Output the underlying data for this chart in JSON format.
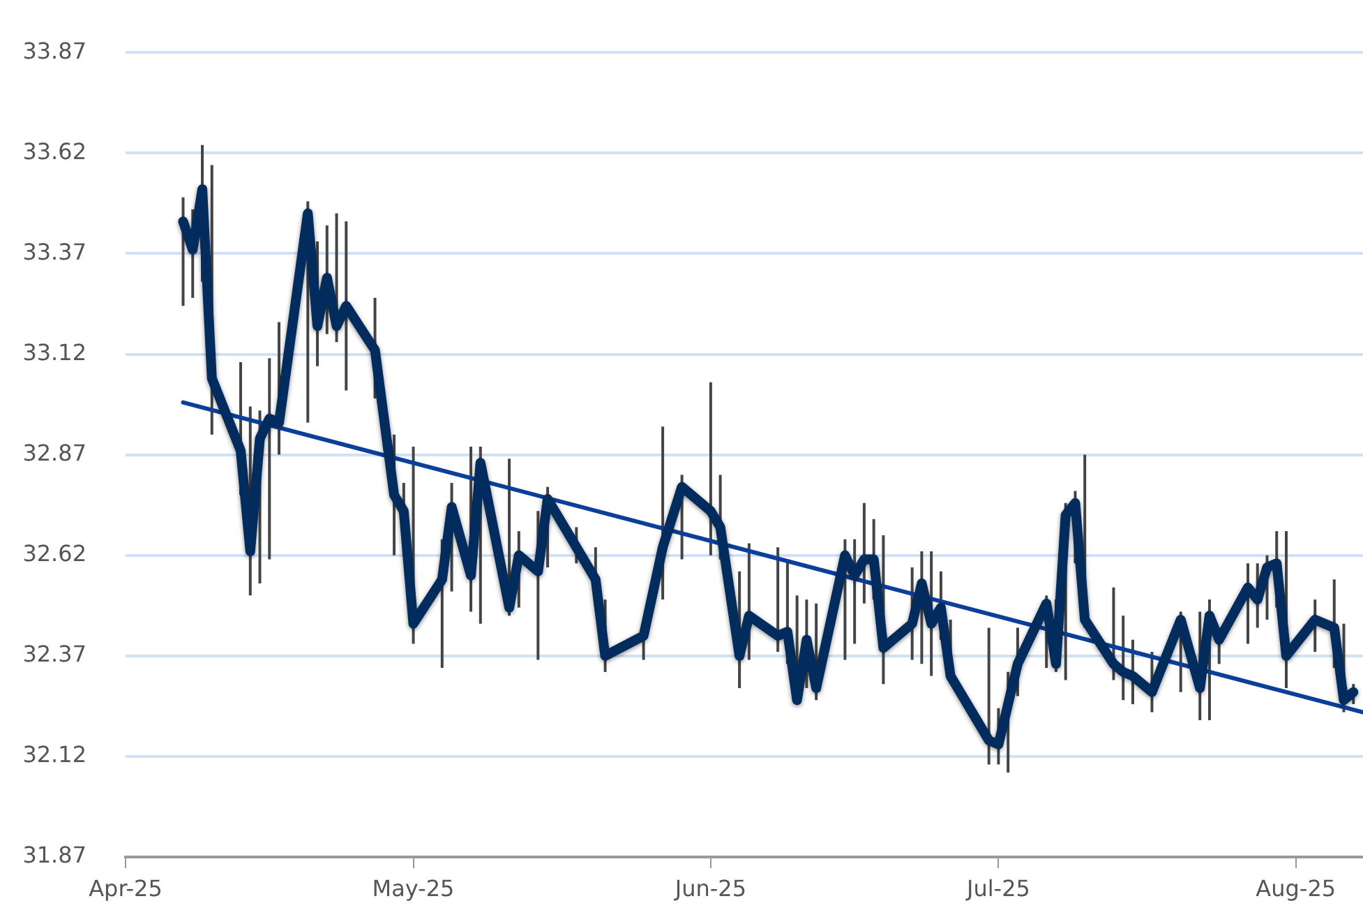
{
  "chart_data": {
    "type": "line",
    "grid": "y",
    "legend": false,
    "marker": "none",
    "line_style": "solid",
    "xlim": [
      "2025-04-01",
      "2025-08-08"
    ],
    "xticks": [
      {
        "value": "2025-04-01",
        "label": "Apr-25"
      },
      {
        "value": "2025-05-01",
        "label": "May-25"
      },
      {
        "value": "2025-06-01",
        "label": "Jun-25"
      },
      {
        "value": "2025-07-01",
        "label": "Jul-25"
      },
      {
        "value": "2025-08-01",
        "label": "Aug-25"
      }
    ],
    "ylim": [
      31.87,
      33.87
    ],
    "yticks": [
      31.87,
      32.12,
      32.37,
      32.62,
      32.87,
      33.12,
      33.37,
      33.62,
      33.87
    ],
    "series": [
      {
        "color": "#022b5e",
        "x": [
          "2025-04-07",
          "2025-04-08",
          "2025-04-09",
          "2025-04-10",
          "2025-04-13",
          "2025-04-14",
          "2025-04-15",
          "2025-04-16",
          "2025-04-17",
          "2025-04-20",
          "2025-04-21",
          "2025-04-22",
          "2025-04-23",
          "2025-04-24",
          "2025-04-27",
          "2025-04-29",
          "2025-04-30",
          "2025-05-01",
          "2025-05-04",
          "2025-05-05",
          "2025-05-07",
          "2025-05-08",
          "2025-05-11",
          "2025-05-12",
          "2025-05-14",
          "2025-05-15",
          "2025-05-18",
          "2025-05-20",
          "2025-05-21",
          "2025-05-25",
          "2025-05-27",
          "2025-05-29",
          "2025-06-01",
          "2025-06-02",
          "2025-06-04",
          "2025-06-05",
          "2025-06-08",
          "2025-06-09",
          "2025-06-10",
          "2025-06-11",
          "2025-06-12",
          "2025-06-15",
          "2025-06-16",
          "2025-06-17",
          "2025-06-18",
          "2025-06-19",
          "2025-06-22",
          "2025-06-23",
          "2025-06-24",
          "2025-06-25",
          "2025-06-26",
          "2025-06-30",
          "2025-07-01",
          "2025-07-02",
          "2025-07-03",
          "2025-07-06",
          "2025-07-07",
          "2025-07-08",
          "2025-07-09",
          "2025-07-10",
          "2025-07-13",
          "2025-07-14",
          "2025-07-15",
          "2025-07-17",
          "2025-07-20",
          "2025-07-22",
          "2025-07-23",
          "2025-07-24",
          "2025-07-27",
          "2025-07-28",
          "2025-07-29",
          "2025-07-30",
          "2025-07-31",
          "2025-08-03",
          "2025-08-05",
          "2025-08-06",
          "2025-08-07"
        ],
        "values": [
          33.45,
          33.38,
          33.53,
          33.06,
          32.88,
          32.63,
          32.91,
          32.96,
          32.95,
          33.47,
          33.19,
          33.31,
          33.19,
          33.24,
          33.13,
          32.77,
          32.73,
          32.45,
          32.56,
          32.74,
          32.57,
          32.85,
          32.49,
          32.62,
          32.58,
          32.76,
          32.64,
          32.56,
          32.37,
          32.42,
          32.64,
          32.79,
          32.73,
          32.69,
          32.37,
          32.47,
          32.42,
          32.43,
          32.26,
          32.41,
          32.29,
          32.62,
          32.57,
          32.61,
          32.61,
          32.39,
          32.45,
          32.55,
          32.45,
          32.49,
          32.32,
          32.16,
          32.15,
          32.25,
          32.35,
          32.5,
          32.35,
          32.72,
          32.75,
          32.46,
          32.35,
          32.33,
          32.32,
          32.28,
          32.46,
          32.29,
          32.47,
          32.41,
          32.54,
          32.51,
          32.59,
          32.6,
          32.37,
          32.46,
          32.44,
          32.26,
          32.28
        ],
        "errors": [
          [
            33.24,
            33.51
          ],
          [
            33.26,
            33.48
          ],
          [
            33.3,
            33.64
          ],
          [
            32.92,
            33.59
          ],
          [
            32.77,
            33.1
          ],
          [
            32.52,
            32.99
          ],
          [
            32.55,
            32.98
          ],
          [
            32.61,
            33.11
          ],
          [
            32.87,
            33.2
          ],
          [
            32.95,
            33.5
          ],
          [
            33.09,
            33.4
          ],
          [
            33.17,
            33.44
          ],
          [
            33.15,
            33.47
          ],
          [
            33.03,
            33.45
          ],
          [
            33.01,
            33.26
          ],
          [
            32.62,
            32.92
          ],
          [
            32.62,
            32.8
          ],
          [
            32.4,
            32.89
          ],
          [
            32.34,
            32.66
          ],
          [
            32.53,
            32.8
          ],
          [
            32.48,
            32.89
          ],
          [
            32.45,
            32.89
          ],
          [
            32.47,
            32.86
          ],
          [
            32.49,
            32.68
          ],
          [
            32.36,
            32.73
          ],
          [
            32.59,
            32.79
          ],
          [
            32.6,
            32.69
          ],
          [
            32.5,
            32.64
          ],
          [
            32.33,
            32.51
          ],
          [
            32.36,
            32.44
          ],
          [
            32.51,
            32.94
          ],
          [
            32.61,
            32.82
          ],
          [
            32.62,
            33.05
          ],
          [
            32.61,
            32.82
          ],
          [
            32.29,
            32.58
          ],
          [
            32.36,
            32.65
          ],
          [
            32.38,
            32.64
          ],
          [
            32.35,
            32.61
          ],
          [
            32.25,
            32.52
          ],
          [
            32.29,
            32.51
          ],
          [
            32.26,
            32.5
          ],
          [
            32.36,
            32.66
          ],
          [
            32.4,
            32.66
          ],
          [
            32.5,
            32.75
          ],
          [
            32.51,
            32.71
          ],
          [
            32.3,
            32.67
          ],
          [
            32.36,
            32.59
          ],
          [
            32.35,
            32.63
          ],
          [
            32.32,
            32.63
          ],
          [
            32.41,
            32.58
          ],
          [
            32.3,
            32.46
          ],
          [
            32.1,
            32.44
          ],
          [
            32.1,
            32.24
          ],
          [
            32.08,
            32.33
          ],
          [
            32.27,
            32.44
          ],
          [
            32.34,
            32.52
          ],
          [
            32.33,
            32.51
          ],
          [
            32.31,
            32.75
          ],
          [
            32.6,
            32.78
          ],
          [
            32.44,
            32.87
          ],
          [
            32.31,
            32.54
          ],
          [
            32.26,
            32.47
          ],
          [
            32.25,
            32.41
          ],
          [
            32.23,
            32.38
          ],
          [
            32.28,
            32.48
          ],
          [
            32.21,
            32.48
          ],
          [
            32.21,
            32.51
          ],
          [
            32.35,
            32.44
          ],
          [
            32.4,
            32.6
          ],
          [
            32.44,
            32.6
          ],
          [
            32.46,
            32.62
          ],
          [
            32.49,
            32.68
          ],
          [
            32.29,
            32.68
          ],
          [
            32.38,
            32.51
          ],
          [
            32.34,
            32.56
          ],
          [
            32.23,
            32.45
          ],
          [
            32.25,
            32.3
          ]
        ]
      },
      {
        "color": "#0a3f9c",
        "x": [
          "2025-04-07",
          "2025-08-08"
        ],
        "values": [
          33.0,
          32.23
        ]
      }
    ]
  }
}
